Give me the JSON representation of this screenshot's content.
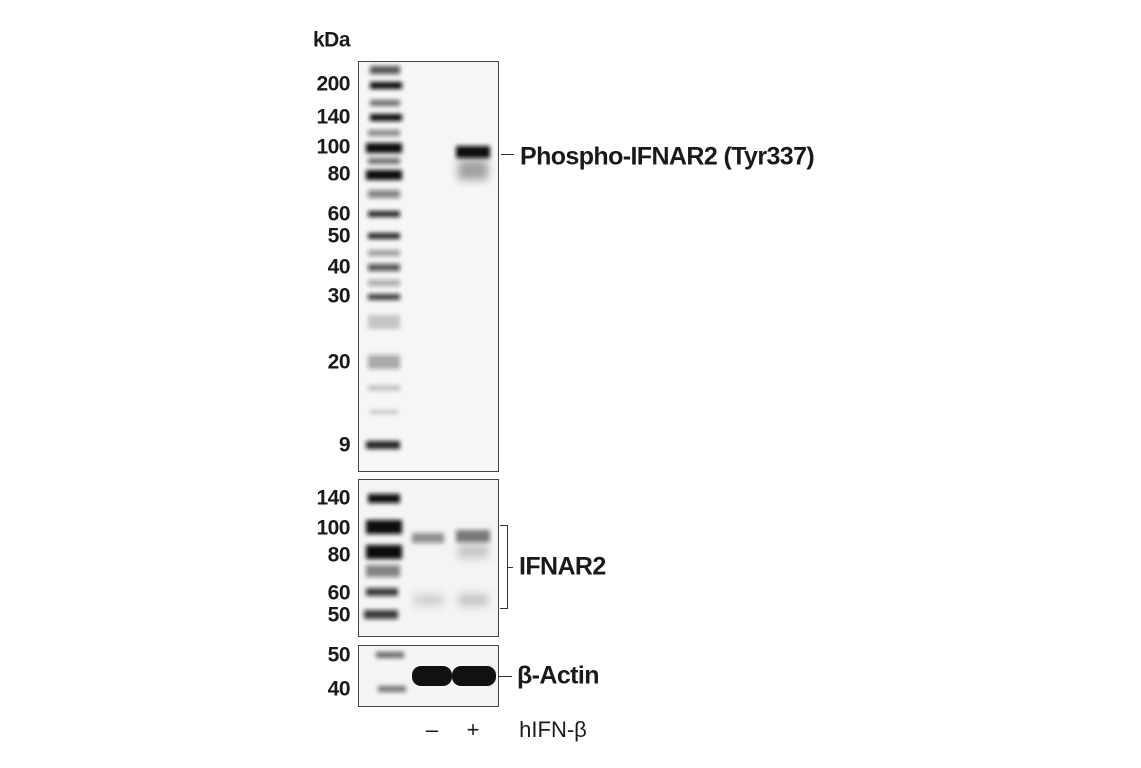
{
  "unit_label": "kDa",
  "panels": [
    {
      "target": "Phospho-IFNAR2 (Tyr337)",
      "markers": [
        "200",
        "140",
        "100",
        "80",
        "60",
        "50",
        "40",
        "30",
        "20",
        "9"
      ]
    },
    {
      "target": "IFNAR2",
      "markers": [
        "140",
        "100",
        "80",
        "60",
        "50"
      ]
    },
    {
      "target": "β-Actin",
      "markers": [
        "50",
        "40"
      ]
    }
  ],
  "treatment": {
    "name": "hIFN-β",
    "lanes": [
      "–",
      "+"
    ]
  }
}
